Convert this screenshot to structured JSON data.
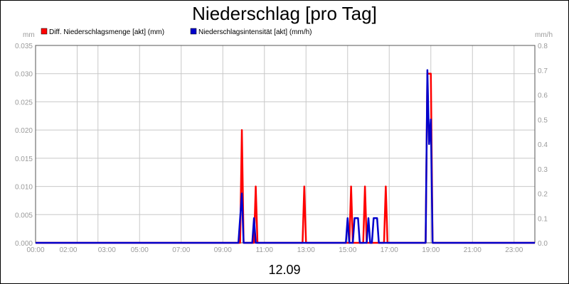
{
  "chart_data": {
    "type": "line",
    "title": "Niederschlag [pro Tag]",
    "date_label": "12.09",
    "left_axis": {
      "unit": "mm",
      "ylim": [
        0,
        0.035
      ],
      "ticks": [
        "0.000",
        "0.005",
        "0.010",
        "0.015",
        "0.020",
        "0.025",
        "0.030",
        "0.035"
      ]
    },
    "right_axis": {
      "unit": "mm/h",
      "ylim": [
        0,
        0.8
      ],
      "ticks": [
        "0.0",
        "0.1",
        "0.2",
        "0.3",
        "0.4",
        "0.5",
        "0.6",
        "0.7",
        "0.8"
      ]
    },
    "x_axis": {
      "xlim": [
        "00:00",
        "24:00"
      ],
      "tick_labels": [
        "00:00",
        "02:00",
        "03:00",
        "05:00",
        "07:00",
        "09:00",
        "11:00",
        "13:00",
        "15:00",
        "17:00",
        "19:00",
        "21:00",
        "23:00"
      ]
    },
    "grid": true,
    "legend_placement": "top",
    "series": [
      {
        "name": "Diff. Niederschlagsmenge [akt] (mm)",
        "color": "#ff0000",
        "axis": "left",
        "points": [
          [
            "00:00",
            0
          ],
          [
            "09:50",
            0
          ],
          [
            "09:55",
            0.02
          ],
          [
            "10:00",
            0
          ],
          [
            "10:30",
            0
          ],
          [
            "10:35",
            0.01
          ],
          [
            "10:40",
            0
          ],
          [
            "12:50",
            0
          ],
          [
            "12:55",
            0.01
          ],
          [
            "13:00",
            0
          ],
          [
            "15:05",
            0
          ],
          [
            "15:10",
            0.01
          ],
          [
            "15:15",
            0
          ],
          [
            "15:45",
            0
          ],
          [
            "15:50",
            0.01
          ],
          [
            "15:55",
            0
          ],
          [
            "16:45",
            0
          ],
          [
            "16:50",
            0.01
          ],
          [
            "16:55",
            0
          ],
          [
            "18:45",
            0
          ],
          [
            "18:50",
            0.03
          ],
          [
            "19:00",
            0.03
          ],
          [
            "19:05",
            0
          ],
          [
            "24:00",
            0
          ]
        ]
      },
      {
        "name": "Niederschlagsintensität [akt] (mm/h)",
        "color": "#0000cc",
        "axis": "right",
        "points": [
          [
            "00:00",
            0
          ],
          [
            "09:45",
            0
          ],
          [
            "09:55",
            0.2
          ],
          [
            "10:00",
            0
          ],
          [
            "10:25",
            0
          ],
          [
            "10:30",
            0.1
          ],
          [
            "10:35",
            0
          ],
          [
            "14:55",
            0
          ],
          [
            "15:00",
            0.1
          ],
          [
            "15:05",
            0
          ],
          [
            "15:15",
            0
          ],
          [
            "15:20",
            0.1
          ],
          [
            "15:30",
            0.1
          ],
          [
            "15:35",
            0
          ],
          [
            "15:55",
            0
          ],
          [
            "16:00",
            0.1
          ],
          [
            "16:05",
            0
          ],
          [
            "16:10",
            0
          ],
          [
            "16:15",
            0.1
          ],
          [
            "16:25",
            0.1
          ],
          [
            "16:30",
            0
          ],
          [
            "18:45",
            0
          ],
          [
            "18:50",
            0.7
          ],
          [
            "18:55",
            0.4
          ],
          [
            "19:00",
            0.5
          ],
          [
            "19:05",
            0
          ],
          [
            "24:00",
            0
          ]
        ]
      }
    ]
  }
}
